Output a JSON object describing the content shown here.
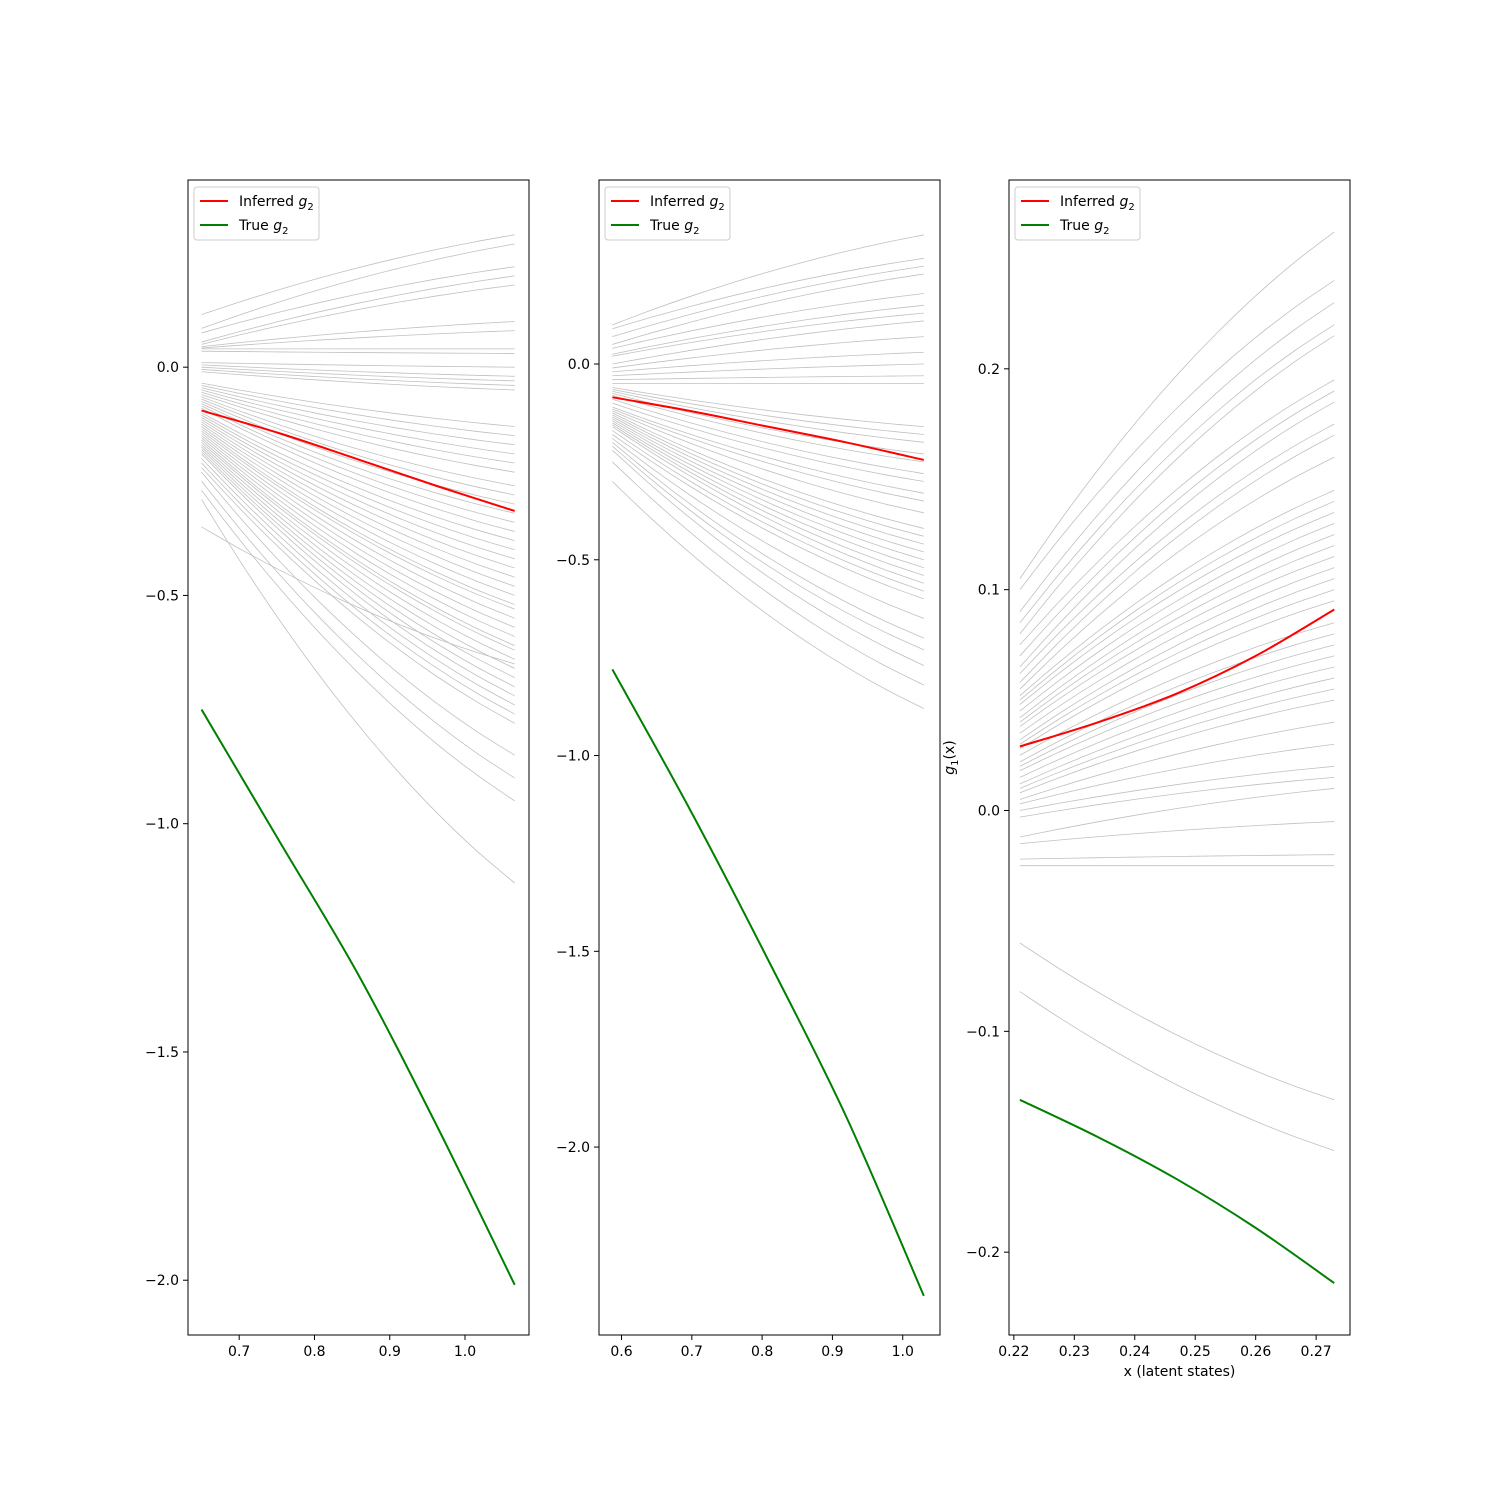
{
  "chart_data": [
    {
      "type": "line",
      "xlim": [
        0.632,
        1.085
      ],
      "ylim": [
        -2.12,
        0.41
      ],
      "xticks": [
        0.7,
        0.8,
        0.9,
        1.0
      ],
      "xtick_labels": [
        "0.7",
        "0.8",
        "0.9",
        "1.0"
      ],
      "yticks": [
        0.0,
        -0.5,
        -1.0,
        -1.5,
        -2.0
      ],
      "ytick_labels": [
        "0.0",
        "−0.5",
        "−1.0",
        "−1.5",
        "−2.0"
      ],
      "xlabel": "",
      "ylabel": "",
      "legend_position": "top-left",
      "legend": [
        {
          "label": "Inferred g2",
          "color": "#ff0000"
        },
        {
          "label": "True g2",
          "color": "#008000"
        }
      ],
      "series": [
        {
          "name": "Inferred g2",
          "color": "#ff0000",
          "x": [
            0.65,
            0.754,
            0.858,
            0.962,
            1.066
          ],
          "y": [
            -0.095,
            -0.145,
            -0.202,
            -0.26,
            -0.315
          ]
        },
        {
          "name": "True g2",
          "color": "#008000",
          "x": [
            0.65,
            0.754,
            0.858,
            0.962,
            1.066
          ],
          "y": [
            -0.75,
            -1.04,
            -1.33,
            -1.66,
            -2.01
          ]
        }
      ],
      "sample_color": "#c0c0c0",
      "samples": {
        "x_range": [
          0.65,
          1.066
        ],
        "start": [
          0.115,
          0.085,
          0.075,
          0.055,
          0.05,
          0.045,
          0.042,
          0.04,
          0.035,
          0.01,
          0.005,
          0.0,
          -0.005,
          -0.01,
          -0.035,
          -0.04,
          -0.045,
          -0.05,
          -0.055,
          -0.06,
          -0.065,
          -0.07,
          -0.075,
          -0.08,
          -0.085,
          -0.09,
          -0.1,
          -0.105,
          -0.11,
          -0.115,
          -0.12,
          -0.125,
          -0.13,
          -0.135,
          -0.14,
          -0.145,
          -0.15,
          -0.155,
          -0.16,
          -0.165,
          -0.17,
          -0.175,
          -0.18,
          -0.185,
          -0.19,
          -0.2,
          -0.21,
          -0.22,
          -0.23,
          -0.25,
          -0.27,
          -0.29,
          -0.35
        ],
        "end": [
          0.29,
          0.27,
          0.22,
          0.2,
          0.18,
          0.1,
          0.08,
          0.04,
          0.03,
          0.0,
          -0.02,
          -0.03,
          -0.04,
          -0.05,
          -0.13,
          -0.15,
          -0.17,
          -0.19,
          -0.21,
          -0.23,
          -0.26,
          -0.28,
          -0.3,
          -0.32,
          -0.34,
          -0.36,
          -0.38,
          -0.4,
          -0.42,
          -0.44,
          -0.46,
          -0.48,
          -0.5,
          -0.52,
          -0.53,
          -0.55,
          -0.57,
          -0.59,
          -0.61,
          -0.62,
          -0.64,
          -0.66,
          -0.68,
          -0.7,
          -0.72,
          -0.74,
          -0.76,
          -0.78,
          -0.85,
          -0.9,
          -0.95,
          -1.13,
          -0.65
        ]
      }
    },
    {
      "type": "line",
      "xlim": [
        0.568,
        1.053
      ],
      "ylim": [
        -2.48,
        0.47
      ],
      "xticks": [
        0.6,
        0.7,
        0.8,
        0.9,
        1.0
      ],
      "xtick_labels": [
        "0.6",
        "0.7",
        "0.8",
        "0.9",
        "1.0"
      ],
      "yticks": [
        0.0,
        -0.5,
        -1.0,
        -1.5,
        -2.0
      ],
      "ytick_labels": [
        "0.0",
        "−0.5",
        "−1.0",
        "−1.5",
        "−2.0"
      ],
      "xlabel": "",
      "ylabel": "",
      "legend_position": "top-left",
      "legend": [
        {
          "label": "Inferred g2",
          "color": "#ff0000"
        },
        {
          "label": "True g2",
          "color": "#008000"
        }
      ],
      "series": [
        {
          "name": "Inferred g2",
          "color": "#ff0000",
          "x": [
            0.587,
            0.698,
            0.808,
            0.919,
            1.03
          ],
          "y": [
            -0.085,
            -0.12,
            -0.16,
            -0.2,
            -0.245
          ]
        },
        {
          "name": "True g2",
          "color": "#008000",
          "x": [
            0.587,
            0.698,
            0.808,
            0.919,
            1.03
          ],
          "y": [
            -0.78,
            -1.14,
            -1.52,
            -1.92,
            -2.38
          ]
        }
      ],
      "sample_color": "#c0c0c0",
      "samples": {
        "x_range": [
          0.587,
          1.03
        ],
        "start": [
          0.1,
          0.09,
          0.07,
          0.05,
          0.04,
          0.025,
          0.02,
          0.0,
          -0.01,
          -0.02,
          -0.03,
          -0.04,
          -0.05,
          -0.06,
          -0.065,
          -0.07,
          -0.075,
          -0.08,
          -0.09,
          -0.1,
          -0.11,
          -0.115,
          -0.12,
          -0.125,
          -0.13,
          -0.135,
          -0.14,
          -0.145,
          -0.15,
          -0.155,
          -0.16,
          -0.17,
          -0.18,
          -0.19,
          -0.2,
          -0.21,
          -0.22,
          -0.25,
          -0.3
        ],
        "end": [
          0.33,
          0.27,
          0.25,
          0.23,
          0.18,
          0.15,
          0.13,
          0.11,
          0.07,
          0.03,
          0.0,
          -0.03,
          -0.05,
          -0.16,
          -0.18,
          -0.2,
          -0.23,
          -0.25,
          -0.28,
          -0.3,
          -0.33,
          -0.35,
          -0.38,
          -0.42,
          -0.44,
          -0.46,
          -0.48,
          -0.5,
          -0.52,
          -0.54,
          -0.56,
          -0.58,
          -0.6,
          -0.65,
          -0.7,
          -0.73,
          -0.77,
          -0.82,
          -0.88
        ]
      }
    },
    {
      "type": "line",
      "xlim": [
        0.2192,
        0.2756
      ],
      "ylim": [
        -0.2375,
        0.2855
      ],
      "xticks": [
        0.22,
        0.23,
        0.24,
        0.25,
        0.26,
        0.27
      ],
      "xtick_labels": [
        "0.22",
        "0.23",
        "0.24",
        "0.25",
        "0.26",
        "0.27"
      ],
      "yticks": [
        0.2,
        0.1,
        0.0,
        -0.1,
        -0.2
      ],
      "ytick_labels": [
        "0.2",
        "0.1",
        "0.0",
        "−0.1",
        "−0.2"
      ],
      "xlabel": "x (latent states)",
      "ylabel": "g1(x)",
      "legend_position": "top-left",
      "legend": [
        {
          "label": "Inferred g2",
          "color": "#ff0000"
        },
        {
          "label": "True g2",
          "color": "#008000"
        }
      ],
      "series": [
        {
          "name": "Inferred g2",
          "color": "#ff0000",
          "x": [
            0.221,
            0.234,
            0.247,
            0.26,
            0.273
          ],
          "y": [
            0.029,
            0.04,
            0.053,
            0.07,
            0.091
          ]
        },
        {
          "name": "True g2",
          "color": "#008000",
          "x": [
            0.221,
            0.234,
            0.247,
            0.26,
            0.273
          ],
          "y": [
            -0.131,
            -0.148,
            -0.167,
            -0.189,
            -0.214
          ]
        }
      ],
      "sample_color": "#c0c0c0",
      "samples": {
        "x_range": [
          0.221,
          0.273
        ],
        "start": [
          0.105,
          0.1,
          0.09,
          0.085,
          0.08,
          0.075,
          0.07,
          0.065,
          0.062,
          0.058,
          0.055,
          0.052,
          0.05,
          0.048,
          0.045,
          0.042,
          0.04,
          0.038,
          0.035,
          0.032,
          0.03,
          0.028,
          0.025,
          0.022,
          0.02,
          0.018,
          0.015,
          0.012,
          0.01,
          0.008,
          0.005,
          0.003,
          0.0,
          -0.003,
          -0.012,
          -0.015,
          -0.022,
          -0.025,
          -0.06,
          -0.082
        ],
        "end": [
          0.262,
          0.24,
          0.23,
          0.22,
          0.215,
          0.195,
          0.19,
          0.185,
          0.175,
          0.17,
          0.16,
          0.145,
          0.14,
          0.135,
          0.13,
          0.125,
          0.12,
          0.115,
          0.11,
          0.105,
          0.1,
          0.095,
          0.085,
          0.08,
          0.075,
          0.07,
          0.065,
          0.06,
          0.055,
          0.05,
          0.04,
          0.03,
          0.02,
          0.015,
          0.01,
          -0.005,
          -0.02,
          -0.025,
          -0.131,
          -0.154
        ]
      }
    }
  ]
}
